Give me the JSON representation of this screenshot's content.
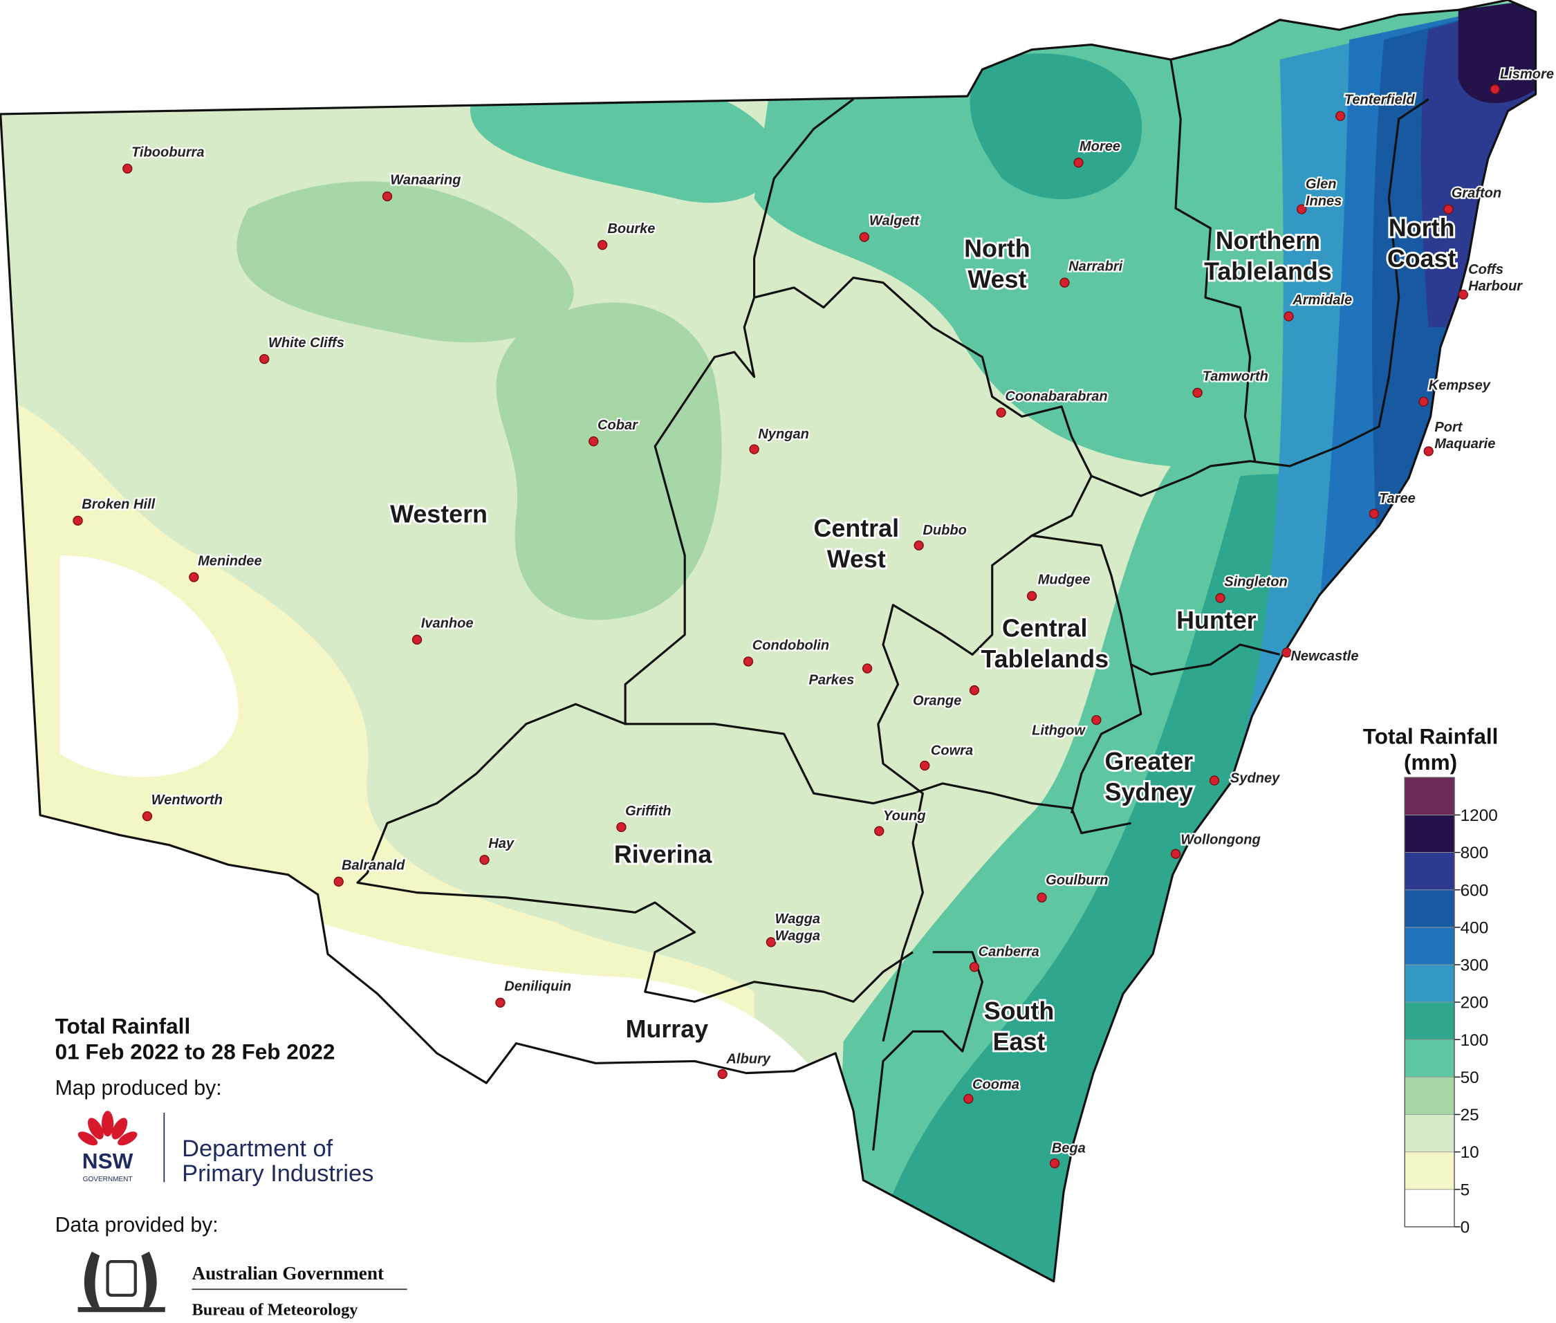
{
  "map": {
    "regions": [
      {
        "lines": [
          "Western"
        ]
      },
      {
        "lines": [
          "North",
          "West"
        ]
      },
      {
        "lines": [
          "Northern",
          "Tablelands"
        ]
      },
      {
        "lines": [
          "North",
          "Coast"
        ]
      },
      {
        "lines": [
          "Central",
          "West"
        ]
      },
      {
        "lines": [
          "Central",
          "Tablelands"
        ]
      },
      {
        "lines": [
          "Hunter"
        ]
      },
      {
        "lines": [
          "Greater",
          "Sydney"
        ]
      },
      {
        "lines": [
          "Riverina"
        ]
      },
      {
        "lines": [
          "Murray"
        ]
      },
      {
        "lines": [
          "South",
          "East"
        ]
      }
    ],
    "towns": [
      {
        "lines": [
          "Tibooburra"
        ]
      },
      {
        "lines": [
          "Wanaaring"
        ]
      },
      {
        "lines": [
          "Bourke"
        ]
      },
      {
        "lines": [
          "White Cliffs"
        ]
      },
      {
        "lines": [
          "Cobar"
        ]
      },
      {
        "lines": [
          "Broken Hill"
        ]
      },
      {
        "lines": [
          "Menindee"
        ]
      },
      {
        "lines": [
          "Ivanhoe"
        ]
      },
      {
        "lines": [
          "Wentworth"
        ]
      },
      {
        "lines": [
          "Balranald"
        ]
      },
      {
        "lines": [
          "Hay"
        ]
      },
      {
        "lines": [
          "Griffith"
        ]
      },
      {
        "lines": [
          "Deniliquin"
        ]
      },
      {
        "lines": [
          "Albury"
        ]
      },
      {
        "lines": [
          "Wagga",
          "Wagga"
        ]
      },
      {
        "lines": [
          "Young"
        ]
      },
      {
        "lines": [
          "Cowra"
        ]
      },
      {
        "lines": [
          "Orange"
        ]
      },
      {
        "lines": [
          "Parkes"
        ]
      },
      {
        "lines": [
          "Condobolin"
        ]
      },
      {
        "lines": [
          "Nyngan"
        ]
      },
      {
        "lines": [
          "Dubbo"
        ]
      },
      {
        "lines": [
          "Mudgee"
        ]
      },
      {
        "lines": [
          "Lithgow"
        ]
      },
      {
        "lines": [
          "Coonabarabran"
        ]
      },
      {
        "lines": [
          "Walgett"
        ]
      },
      {
        "lines": [
          "Moree"
        ]
      },
      {
        "lines": [
          "Narrabri"
        ]
      },
      {
        "lines": [
          "Tamworth"
        ]
      },
      {
        "lines": [
          "Armidale"
        ]
      },
      {
        "lines": [
          "Glen",
          "Innes"
        ]
      },
      {
        "lines": [
          "Tenterfield"
        ]
      },
      {
        "lines": [
          "Lismore"
        ]
      },
      {
        "lines": [
          "Grafton"
        ]
      },
      {
        "lines": [
          "Coffs",
          "Harbour"
        ]
      },
      {
        "lines": [
          "Kempsey"
        ]
      },
      {
        "lines": [
          "Port",
          "Maquarie"
        ]
      },
      {
        "lines": [
          "Taree"
        ]
      },
      {
        "lines": [
          "Singleton"
        ]
      },
      {
        "lines": [
          "Newcastle"
        ]
      },
      {
        "lines": [
          "Sydney"
        ]
      },
      {
        "lines": [
          "Wollongong"
        ]
      },
      {
        "lines": [
          "Goulburn"
        ]
      },
      {
        "lines": [
          "Canberra"
        ]
      },
      {
        "lines": [
          "Cooma"
        ]
      },
      {
        "lines": [
          "Bega"
        ]
      }
    ]
  },
  "legend": {
    "title": [
      "Total Rainfall",
      "(mm)"
    ],
    "ticks": [
      0,
      5,
      10,
      25,
      50,
      100,
      200,
      300,
      400,
      600,
      800,
      1200
    ],
    "colors": [
      "#ffffff",
      "#f4f6c6",
      "#d7ebc8",
      "#a7d7a7",
      "#5ec6a0",
      "#2fa78f",
      "#3399c4",
      "#1f74bb",
      "#175aa2",
      "#2c3a8f",
      "#24124a",
      "#6b2a57"
    ]
  },
  "caption": {
    "title": "Total Rainfall",
    "period": "01 Feb 2022 to 28 Feb 2022",
    "produced_by": "Map produced by:",
    "nsw": "NSW",
    "nsw_sub": "GOVERNMENT",
    "dept_line1": "Department of",
    "dept_line2": "Primary Industries",
    "provided_by": "Data provided by:",
    "gov": "Australian Government",
    "bom": "Bureau of Meteorology"
  }
}
